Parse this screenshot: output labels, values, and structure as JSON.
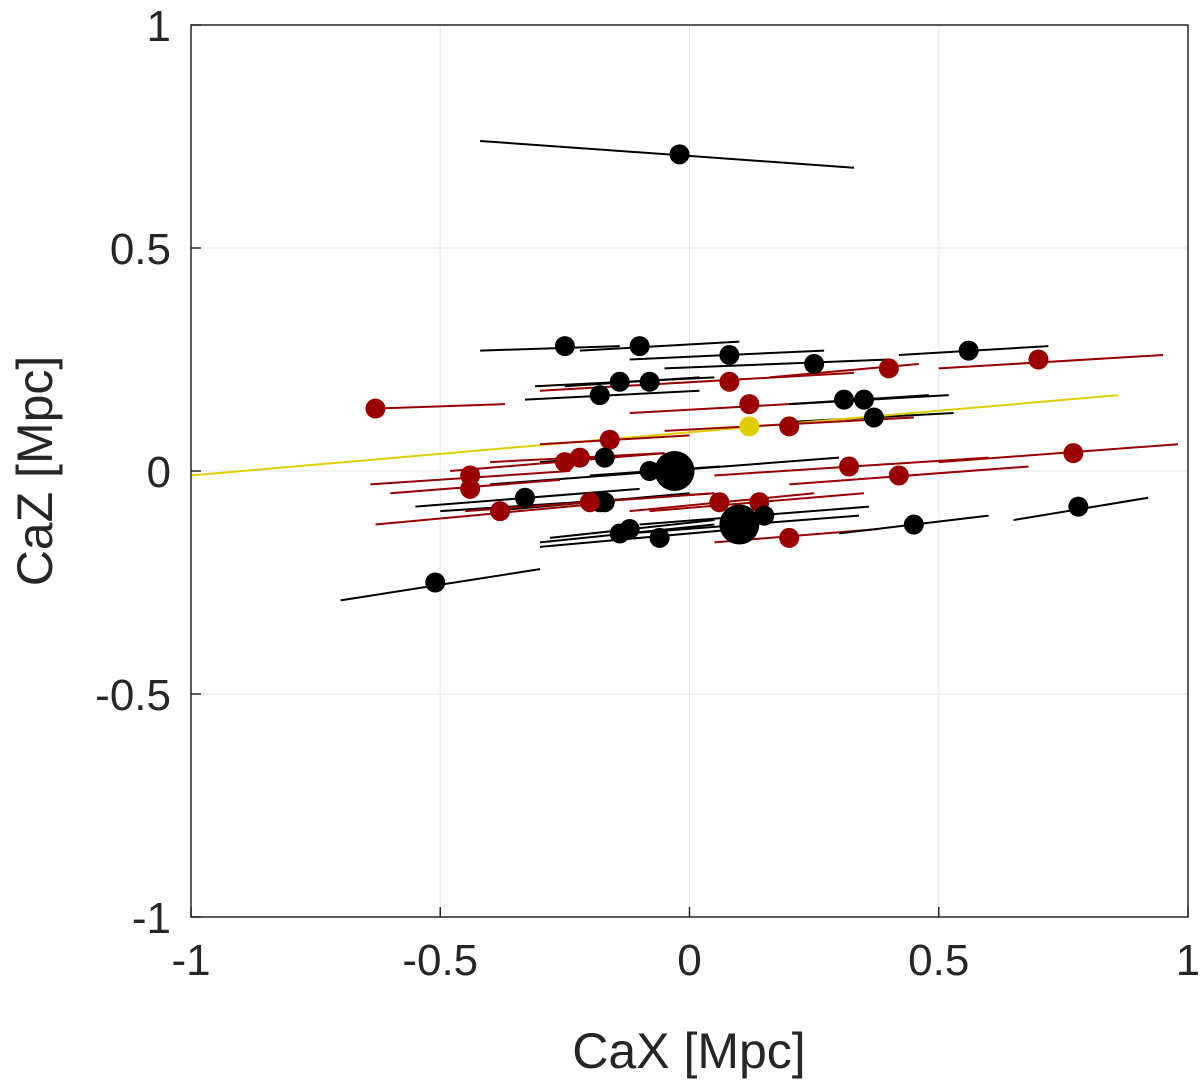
{
  "chart_data": {
    "type": "scatter",
    "title": "",
    "xlabel": "CaX [Mpc]",
    "ylabel": "CaZ [Mpc]",
    "xlim": [
      -1,
      1
    ],
    "ylim": [
      -1,
      1
    ],
    "xticks": [
      -1,
      -0.5,
      0,
      0.5,
      1
    ],
    "yticks": [
      -1,
      -0.5,
      0,
      0.5,
      1
    ],
    "xtick_labels": [
      "-1",
      "-0.5",
      "0",
      "0.5",
      "1"
    ],
    "ytick_labels": [
      "-1",
      "-0.5",
      "0",
      "0.5",
      "1"
    ],
    "grid": true,
    "colors": {
      "black": "#000000",
      "red": "#990000",
      "yellow": "#e0cc00",
      "grid": "#e6e6e6",
      "axis": "#262626"
    },
    "points": [
      {
        "x": -0.02,
        "y": 0.71,
        "color": "black",
        "size": "normal",
        "line": [
          -0.42,
          0.74,
          0.33,
          0.68
        ]
      },
      {
        "x": -0.25,
        "y": 0.28,
        "color": "black",
        "size": "normal",
        "line": [
          -0.42,
          0.27,
          -0.14,
          0.28
        ]
      },
      {
        "x": -0.1,
        "y": 0.28,
        "color": "black",
        "size": "normal",
        "line": [
          -0.22,
          0.27,
          0.1,
          0.29
        ]
      },
      {
        "x": 0.08,
        "y": 0.26,
        "color": "black",
        "size": "normal",
        "line": [
          -0.12,
          0.25,
          0.27,
          0.27
        ]
      },
      {
        "x": 0.25,
        "y": 0.24,
        "color": "black",
        "size": "normal",
        "line": [
          -0.05,
          0.23,
          0.4,
          0.25
        ]
      },
      {
        "x": 0.56,
        "y": 0.27,
        "color": "black",
        "size": "normal",
        "line": [
          0.42,
          0.26,
          0.72,
          0.28
        ]
      },
      {
        "x": 0.7,
        "y": 0.25,
        "color": "red",
        "size": "normal",
        "line": [
          0.5,
          0.23,
          0.95,
          0.26
        ]
      },
      {
        "x": 0.4,
        "y": 0.23,
        "color": "red",
        "size": "normal",
        "line": [
          0.16,
          0.21,
          0.46,
          0.24
        ]
      },
      {
        "x": 0.08,
        "y": 0.2,
        "color": "red",
        "size": "normal",
        "line": [
          -0.3,
          0.18,
          0.33,
          0.22
        ]
      },
      {
        "x": -0.14,
        "y": 0.2,
        "color": "black",
        "size": "normal",
        "line": [
          -0.31,
          0.19,
          0.05,
          0.21
        ]
      },
      {
        "x": -0.08,
        "y": 0.2,
        "color": "black",
        "size": "normal",
        "line": [
          -0.25,
          0.19,
          0.02,
          0.21
        ]
      },
      {
        "x": -0.18,
        "y": 0.17,
        "color": "black",
        "size": "normal",
        "line": [
          -0.33,
          0.16,
          0.02,
          0.18
        ]
      },
      {
        "x": 0.12,
        "y": 0.15,
        "color": "red",
        "size": "normal",
        "line": [
          -0.12,
          0.13,
          0.36,
          0.16
        ]
      },
      {
        "x": 0.31,
        "y": 0.16,
        "color": "black",
        "size": "normal",
        "line": [
          0.2,
          0.15,
          0.48,
          0.17
        ]
      },
      {
        "x": 0.35,
        "y": 0.16,
        "color": "black",
        "size": "normal",
        "line": [
          0.2,
          0.15,
          0.52,
          0.17
        ]
      },
      {
        "x": 0.37,
        "y": 0.12,
        "color": "black",
        "size": "normal",
        "line": [
          0.2,
          0.11,
          0.53,
          0.13
        ]
      },
      {
        "x": 0.12,
        "y": 0.1,
        "color": "yellow",
        "size": "normal",
        "line": [
          -1.0,
          -0.01,
          0.86,
          0.17
        ]
      },
      {
        "x": 0.2,
        "y": 0.1,
        "color": "red",
        "size": "normal",
        "line": [
          -0.05,
          0.09,
          0.45,
          0.12
        ]
      },
      {
        "x": -0.63,
        "y": 0.14,
        "color": "red",
        "size": "normal",
        "line": [
          -0.63,
          0.14,
          -0.37,
          0.15
        ]
      },
      {
        "x": -0.16,
        "y": 0.07,
        "color": "red",
        "size": "normal",
        "line": [
          -0.3,
          0.06,
          0.0,
          0.08
        ]
      },
      {
        "x": -0.17,
        "y": 0.03,
        "color": "black",
        "size": "normal",
        "line": [
          -0.3,
          0.02,
          -0.05,
          0.04
        ]
      },
      {
        "x": -0.22,
        "y": 0.03,
        "color": "red",
        "size": "normal",
        "line": [
          -0.4,
          0.02,
          -0.05,
          0.04
        ]
      },
      {
        "x": -0.25,
        "y": 0.02,
        "color": "red",
        "size": "normal",
        "line": [
          -0.48,
          0.0,
          -0.05,
          0.04
        ]
      },
      {
        "x": -0.08,
        "y": 0.0,
        "color": "black",
        "size": "normal",
        "line": [
          -0.2,
          -0.01,
          0.06,
          0.01
        ]
      },
      {
        "x": -0.03,
        "y": 0.0,
        "color": "black",
        "size": "large",
        "line": [
          -0.4,
          -0.03,
          0.3,
          0.03
        ]
      },
      {
        "x": -0.44,
        "y": -0.01,
        "color": "red",
        "size": "normal",
        "line": [
          -0.64,
          -0.03,
          -0.24,
          0.0
        ]
      },
      {
        "x": -0.44,
        "y": -0.04,
        "color": "red",
        "size": "normal",
        "line": [
          -0.6,
          -0.05,
          -0.26,
          -0.02
        ]
      },
      {
        "x": 0.32,
        "y": 0.01,
        "color": "red",
        "size": "normal",
        "line": [
          0.05,
          -0.01,
          0.6,
          0.03
        ]
      },
      {
        "x": 0.42,
        "y": -0.01,
        "color": "red",
        "size": "normal",
        "line": [
          0.2,
          -0.03,
          0.68,
          0.01
        ]
      },
      {
        "x": 0.77,
        "y": 0.04,
        "color": "red",
        "size": "normal",
        "line": [
          0.5,
          0.02,
          0.98,
          0.06
        ]
      },
      {
        "x": -0.33,
        "y": -0.06,
        "color": "black",
        "size": "normal",
        "line": [
          -0.55,
          -0.08,
          -0.1,
          -0.04
        ]
      },
      {
        "x": -0.18,
        "y": -0.07,
        "color": "black",
        "size": "normal",
        "line": [
          -0.5,
          -0.09,
          0.05,
          -0.05
        ]
      },
      {
        "x": -0.17,
        "y": -0.07,
        "color": "black",
        "size": "normal",
        "line": [
          -0.4,
          -0.09,
          0.0,
          -0.05
        ]
      },
      {
        "x": -0.2,
        "y": -0.07,
        "color": "red",
        "size": "normal",
        "line": [
          -0.45,
          -0.09,
          0.05,
          -0.05
        ]
      },
      {
        "x": 0.06,
        "y": -0.07,
        "color": "red",
        "size": "normal",
        "line": [
          -0.12,
          -0.09,
          0.25,
          -0.05
        ]
      },
      {
        "x": 0.14,
        "y": -0.07,
        "color": "red",
        "size": "normal",
        "line": [
          -0.08,
          -0.09,
          0.35,
          -0.05
        ]
      },
      {
        "x": 0.15,
        "y": -0.1,
        "color": "black",
        "size": "normal",
        "line": [
          -0.1,
          -0.12,
          0.36,
          -0.08
        ]
      },
      {
        "x": -0.38,
        "y": -0.09,
        "color": "red",
        "size": "normal",
        "line": [
          -0.63,
          -0.12,
          -0.15,
          -0.07
        ]
      },
      {
        "x": 0.1,
        "y": -0.12,
        "color": "black",
        "size": "large",
        "line": [
          -0.12,
          -0.14,
          0.34,
          -0.1
        ]
      },
      {
        "x": -0.14,
        "y": -0.14,
        "color": "black",
        "size": "normal",
        "line": [
          -0.3,
          -0.16,
          0.05,
          -0.12
        ]
      },
      {
        "x": -0.12,
        "y": -0.13,
        "color": "black",
        "size": "normal",
        "line": [
          -0.28,
          -0.15,
          0.05,
          -0.11
        ]
      },
      {
        "x": -0.06,
        "y": -0.15,
        "color": "black",
        "size": "normal",
        "line": [
          -0.3,
          -0.17,
          0.1,
          -0.13
        ]
      },
      {
        "x": 0.2,
        "y": -0.15,
        "color": "red",
        "size": "normal",
        "line": [
          0.05,
          -0.16,
          0.38,
          -0.13
        ]
      },
      {
        "x": 0.45,
        "y": -0.12,
        "color": "black",
        "size": "normal",
        "line": [
          0.3,
          -0.14,
          0.6,
          -0.1
        ]
      },
      {
        "x": 0.78,
        "y": -0.08,
        "color": "black",
        "size": "normal",
        "line": [
          0.65,
          -0.11,
          0.92,
          -0.06
        ]
      },
      {
        "x": -0.51,
        "y": -0.25,
        "color": "black",
        "size": "normal",
        "line": [
          -0.7,
          -0.29,
          -0.3,
          -0.22
        ]
      }
    ]
  }
}
